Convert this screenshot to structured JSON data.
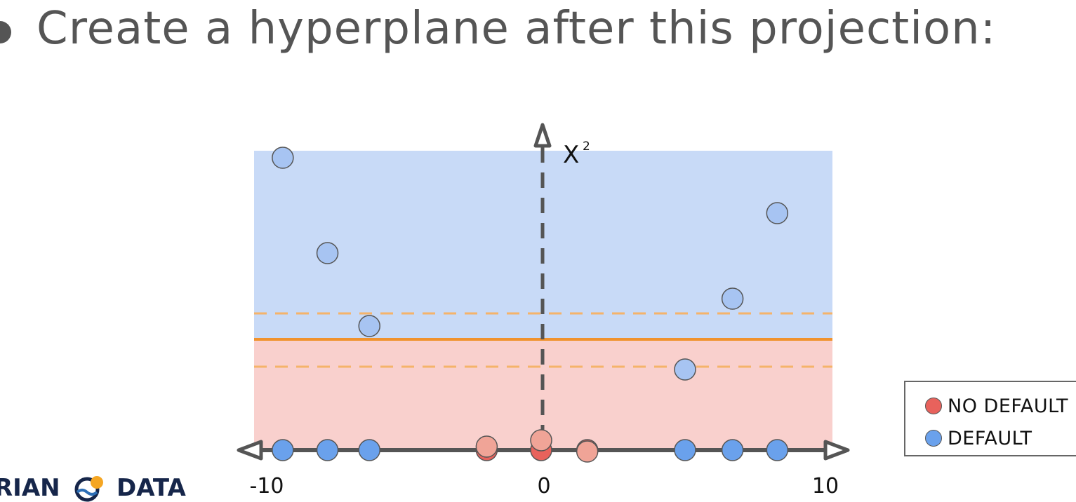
{
  "slide": {
    "title": "Create a hyperplane after this projection:"
  },
  "diagram": {
    "y_axis_label": "X",
    "y_axis_superscript": "2",
    "tick_labels": [
      "-10",
      "0",
      "10"
    ],
    "colors": {
      "no_default": "#e8625c",
      "default": "#6aa1ec",
      "no_default_projected": "#f0a497",
      "default_projected": "#a7c4f2",
      "upper_region": "#c8daf7",
      "lower_region": "#f9d0cd",
      "hyperplane": "#f0922e",
      "margin": "#f5b36a",
      "axis": "#555555"
    },
    "axis_points": [
      {
        "x": -9.3,
        "class": "default"
      },
      {
        "x": -7.7,
        "class": "default"
      },
      {
        "x": -6.2,
        "class": "default"
      },
      {
        "x": -2.0,
        "class": "no_default"
      },
      {
        "x": -0.05,
        "class": "no_default"
      },
      {
        "x": 1.6,
        "class": "no_default"
      },
      {
        "x": 5.1,
        "class": "default"
      },
      {
        "x": 6.8,
        "class": "default"
      },
      {
        "x": 8.4,
        "class": "default"
      }
    ],
    "projected_points": [
      {
        "x": -9.3,
        "class": "default"
      },
      {
        "x": -7.7,
        "class": "default"
      },
      {
        "x": -6.2,
        "class": "default"
      },
      {
        "x": -2.0,
        "class": "no_default"
      },
      {
        "x": -0.05,
        "class": "no_default"
      },
      {
        "x": 1.6,
        "class": "no_default"
      },
      {
        "x": 5.1,
        "class": "default"
      },
      {
        "x": 6.8,
        "class": "default"
      },
      {
        "x": 8.4,
        "class": "default"
      }
    ]
  },
  "legend": {
    "items": [
      {
        "label": "NO DEFAULT",
        "class": "no_default"
      },
      {
        "label": "DEFAULT",
        "class": "default"
      }
    ]
  },
  "brand": {
    "left_text": "RIAN",
    "right_text": "DATA",
    "logo_colors": {
      "sun": "#f5a623",
      "wave": "#2d6fb7",
      "ring": "#16264a"
    }
  }
}
